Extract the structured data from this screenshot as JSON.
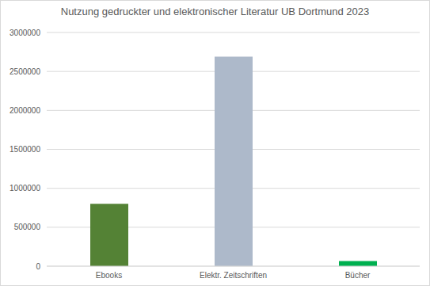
{
  "chart_data": {
    "type": "bar",
    "title": "Nutzung gedruckter und elektronischer Literatur UB Dortmund 2023",
    "categories": [
      "Ebooks",
      "Elektr. Zeitschriften",
      "Bücher"
    ],
    "values": [
      800000,
      2690000,
      65000
    ],
    "colors": [
      "#548235",
      "#adb9ca",
      "#00b050"
    ],
    "ylim": [
      0,
      3000000
    ],
    "yticks": [
      0,
      500000,
      1000000,
      1500000,
      2000000,
      2500000,
      3000000
    ],
    "grid": true
  }
}
